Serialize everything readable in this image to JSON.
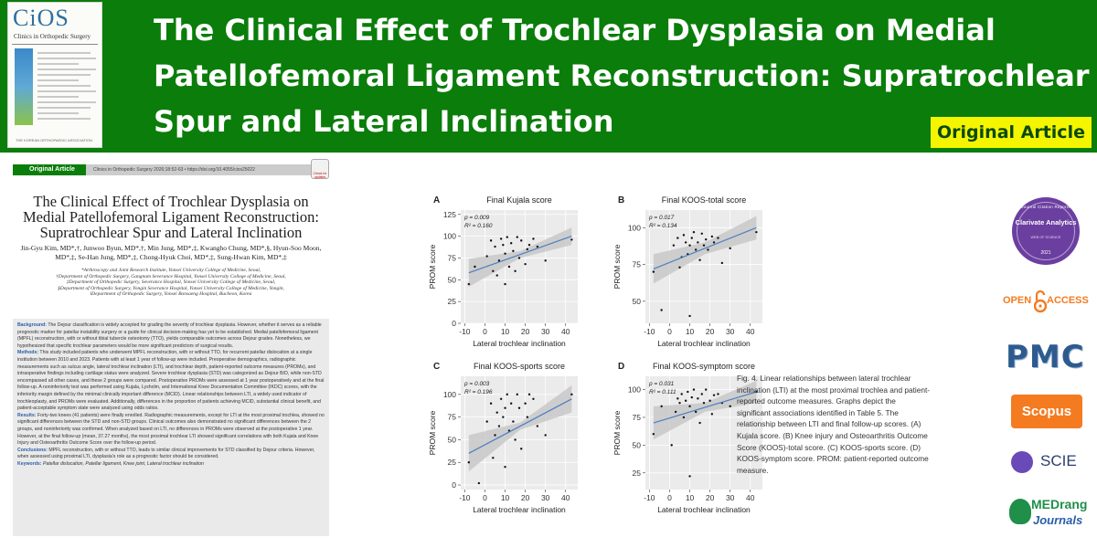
{
  "header": {
    "cover": {
      "logo": "CiOS",
      "journal_name": "Clinics in Orthopedic Surgery",
      "publisher": "THE KOREAN ORTHOPAEDIC ASSOCIATION"
    },
    "title": "The Clinical Effect of Trochlear Dysplasia on Medial Patellofemoral Ligament Reconstruction: Supratrochlear Spur and Lateral Inclination",
    "badge": "Original Article"
  },
  "paper": {
    "section_label": "Original Article",
    "citation": "Clinics in Orthopedic Surgery 2026;18:52-63  •  https://doi.org/10.4055/cios25022",
    "check_updates": "Check for updates",
    "title": "The Clinical Effect of Trochlear Dysplasia on Medial Patellofemoral Ligament Reconstruction: Supratrochlear Spur and Lateral Inclination",
    "authors": "Jin-Gyu Kim, MD*,†, Junwoo Byun, MD*,†, Min Jung, MD*,‡, Kwangho Chung, MD*,§, Hyun-Soo Moon, MD*,‡, Se-Han Jung, MD*,‡, Chong-Hyuk Choi, MD*,‡, Sung-Hwan Kim, MD*,‡",
    "affiliations": [
      "*Arthroscopy and Joint Research Institute, Yonsei University College of Medicine, Seoul,",
      "†Department of Orthopedic Surgery, Gangnam Severance Hospital, Yonsei University College of Medicine, Seoul,",
      "‡Department of Orthopedic Surgery, Severance Hospital, Yonsei University College of Medicine, Seoul,",
      "§Department of Orthopedic Surgery, Yongin Severance Hospital, Yonsei University College of Medicine, Yongin,",
      "‖Department of Orthopedic Surgery, Yonsei Bonsaeng Hospital, Bucheon, Korea"
    ],
    "abstract": {
      "background_label": "Background:",
      "background": "The Dejour classification is widely accepted for grading the severity of trochlear dysplasia. However, whether it serves as a reliable prognostic marker for patellar instability surgery or a guide for clinical decision-making has yet to be established. Medial patellofemoral ligament (MPFL) reconstruction, with or without tibial tubercle osteotomy (TTO), yields comparable outcomes across Dejour grades. Nonetheless, we hypothesized that specific trochlear parameters would be more significant predictors of surgical results.",
      "methods_label": "Methods:",
      "methods": "This study included patients who underwent MPFL reconstruction, with or without TTO, for recurrent patellar dislocation at a single institution between 2010 and 2023. Patients with at least 1 year of follow-up were included. Preoperative demographics, radiographic measurements such as sulcus angle, lateral trochlear inclination (LTI), and trochlear depth, patient-reported outcome measures (PROMs), and intraoperative findings including cartilage status were analyzed. Severe trochlear dysplasia (STD) was categorized as Dejour B/D, while non-STD encompassed all other cases, and these 2 groups were compared. Postoperative PROMs were assessed at 1 year postoperatively and at the final follow-up. A noninferiority test was performed using Kujala, Lysholm, and International Knee Documentation Committee (IKDC) scores, with the inferiority margin defined by the minimal clinically important difference (MCID). Linear relationships between LTI, a widely used indicator of trochleoplasty, and PROMs were evaluated. Additionally, differences in the proportion of patients achieving MCID, substantial clinical benefit, and patient-acceptable symptom state were analyzed using odds ratios.",
      "results_label": "Results:",
      "results": "Forty-two knees (41 patients) were finally enrolled. Radiographic measurements, except for LTI at the most proximal trochlea, showed no significant differences between the STD and non-STD groups. Clinical outcomes also demonstrated no significant differences between the 2 groups, and noninferiority was confirmed. When analyzed based on LTI, no differences in PROMs were observed at the postoperative 1 year. However, at the final follow-up (mean, 37.27 months), the most proximal trochlear LTI showed significant correlations with both Kujala and Knee Injury and Osteoarthritis Outcome Score over the follow-up period.",
      "conclusions_label": "Conclusions:",
      "conclusions": "MPFL reconstruction, with or without TTO, leads to similar clinical improvements for STD classified by Dejour criteria. However, when assessed using proximal LTI, dysplasia's role as a prognostic factor should be considered.",
      "keywords_label": "Keywords:",
      "keywords": "Patellar dislocation, Patellar ligament, Knee joint, Lateral trochlear inclination"
    }
  },
  "figure": {
    "caption": "Fig. 4. Linear relationships between lateral trochlear inclination (LTI) at the most proximal trochlea and patient-reported outcome measures. Graphs depict the significant associations identified in Table 5. The relationship between LTI and final follow-up scores. (A) Kujala score. (B) Knee injury and Osteoarthritis Outcome Score (KOOS)-total score. (C) KOOS-sports score. (D) KOOS-symptom score. PROM: patient-reported outcome measure."
  },
  "badges": {
    "jcr_top": "Journal Citation Reports",
    "jcr_brand": "Clarivate Analytics",
    "jcr_sub": "WEB OF SCIENCE",
    "jcr_year": "2021",
    "open_access_left": "OPEN",
    "open_access_right": "ACCESS",
    "pmc": "PMC",
    "scopus": "Scopus",
    "scie": "SCIE",
    "medrang_1": "MEDrang",
    "medrang_2": "Journals"
  },
  "chart_data": [
    {
      "type": "scatter",
      "panel": "A",
      "title": "Final Kujala score",
      "annotation": [
        "p = 0.009",
        "R² = 0.160"
      ],
      "xlabel": "Lateral trochlear inclination",
      "ylabel": "PROM score",
      "xlim": [
        -12,
        46
      ],
      "ylim": [
        0,
        130
      ],
      "xticks": [
        -10,
        0,
        10,
        20,
        30,
        40
      ],
      "yticks": [
        0,
        25,
        50,
        75,
        100,
        125
      ],
      "fit": {
        "x": [
          -8,
          43
        ],
        "y": [
          58,
          100
        ]
      },
      "band": {
        "lower": [
          42,
          90
        ],
        "upper": [
          74,
          110
        ]
      },
      "points": [
        [
          -8,
          45
        ],
        [
          -5,
          65
        ],
        [
          1,
          77
        ],
        [
          3,
          95
        ],
        [
          4,
          60
        ],
        [
          5,
          88
        ],
        [
          6,
          55
        ],
        [
          7,
          72
        ],
        [
          8,
          97
        ],
        [
          9,
          90
        ],
        [
          10,
          80
        ],
        [
          10,
          45
        ],
        [
          11,
          99
        ],
        [
          12,
          65
        ],
        [
          13,
          92
        ],
        [
          14,
          83
        ],
        [
          15,
          60
        ],
        [
          16,
          99
        ],
        [
          17,
          75
        ],
        [
          18,
          95
        ],
        [
          20,
          68
        ],
        [
          21,
          85
        ],
        [
          22,
          90
        ],
        [
          24,
          97
        ],
        [
          26,
          88
        ],
        [
          30,
          72
        ],
        [
          43,
          96
        ]
      ]
    },
    {
      "type": "scatter",
      "panel": "B",
      "title": "Final KOOS-total score",
      "annotation": [
        "p = 0.017",
        "R² = 0.134"
      ],
      "xlabel": "Lateral trochlear inclination",
      "ylabel": "PROM score",
      "xlim": [
        -12,
        46
      ],
      "ylim": [
        35,
        112
      ],
      "xticks": [
        -10,
        0,
        10,
        20,
        30,
        40
      ],
      "yticks": [
        50,
        75,
        100
      ],
      "fit": {
        "x": [
          -8,
          43
        ],
        "y": [
          72,
          100
        ]
      },
      "band": {
        "lower": [
          62,
          92
        ],
        "upper": [
          82,
          108
        ]
      },
      "points": [
        [
          -8,
          70
        ],
        [
          -4,
          44
        ],
        [
          2,
          88
        ],
        [
          4,
          93
        ],
        [
          5,
          73
        ],
        [
          6,
          80
        ],
        [
          7,
          95
        ],
        [
          8,
          90
        ],
        [
          9,
          82
        ],
        [
          10,
          88
        ],
        [
          10,
          40
        ],
        [
          11,
          93
        ],
        [
          12,
          97
        ],
        [
          13,
          85
        ],
        [
          14,
          90
        ],
        [
          15,
          78
        ],
        [
          16,
          96
        ],
        [
          17,
          88
        ],
        [
          18,
          92
        ],
        [
          19,
          85
        ],
        [
          21,
          94
        ],
        [
          22,
          90
        ],
        [
          24,
          93
        ],
        [
          26,
          76
        ],
        [
          30,
          86
        ],
        [
          43,
          97
        ]
      ]
    },
    {
      "type": "scatter",
      "panel": "C",
      "title": "Final KOOS-sports score",
      "annotation": [
        "p = 0.003",
        "R² = 0.196"
      ],
      "xlabel": "Lateral trochlear inclination",
      "ylabel": "PROM score",
      "xlim": [
        -12,
        46
      ],
      "ylim": [
        -5,
        120
      ],
      "xticks": [
        -10,
        0,
        10,
        20,
        30,
        40
      ],
      "yticks": [
        0,
        25,
        50,
        75,
        100
      ],
      "fit": {
        "x": [
          -8,
          43
        ],
        "y": [
          35,
          95
        ]
      },
      "band": {
        "lower": [
          15,
          80
        ],
        "upper": [
          55,
          110
        ]
      },
      "points": [
        [
          -8,
          25
        ],
        [
          -3,
          2
        ],
        [
          1,
          70
        ],
        [
          3,
          90
        ],
        [
          4,
          30
        ],
        [
          5,
          55
        ],
        [
          6,
          80
        ],
        [
          7,
          65
        ],
        [
          8,
          95
        ],
        [
          9,
          75
        ],
        [
          10,
          20
        ],
        [
          10,
          85
        ],
        [
          11,
          100
        ],
        [
          12,
          60
        ],
        [
          13,
          90
        ],
        [
          14,
          70
        ],
        [
          15,
          50
        ],
        [
          16,
          100
        ],
        [
          17,
          85
        ],
        [
          18,
          40
        ],
        [
          20,
          90
        ],
        [
          21,
          75
        ],
        [
          22,
          100
        ],
        [
          24,
          95
        ],
        [
          26,
          65
        ],
        [
          30,
          55
        ],
        [
          43,
          100
        ]
      ]
    },
    {
      "type": "scatter",
      "panel": "D",
      "title": "Final KOOS-symptom score",
      "annotation": [
        "p = 0.031",
        "R² = 0.111"
      ],
      "xlabel": "Lateral trochlear inclination",
      "ylabel": "PROM score",
      "xlim": [
        -12,
        46
      ],
      "ylim": [
        10,
        112
      ],
      "xticks": [
        -10,
        0,
        10,
        20,
        30,
        40
      ],
      "yticks": [
        25,
        50,
        75,
        100
      ],
      "fit": {
        "x": [
          -8,
          43
        ],
        "y": [
          70,
          98
        ]
      },
      "band": {
        "lower": [
          55,
          88
        ],
        "upper": [
          85,
          108
        ]
      },
      "points": [
        [
          -8,
          60
        ],
        [
          -4,
          85
        ],
        [
          1,
          50
        ],
        [
          3,
          80
        ],
        [
          4,
          92
        ],
        [
          5,
          88
        ],
        [
          6,
          96
        ],
        [
          7,
          75
        ],
        [
          8,
          90
        ],
        [
          9,
          98
        ],
        [
          10,
          85
        ],
        [
          10,
          22
        ],
        [
          11,
          93
        ],
        [
          12,
          100
        ],
        [
          13,
          80
        ],
        [
          14,
          92
        ],
        [
          15,
          70
        ],
        [
          16,
          96
        ],
        [
          17,
          88
        ],
        [
          18,
          100
        ],
        [
          20,
          90
        ],
        [
          21,
          78
        ],
        [
          22,
          95
        ],
        [
          24,
          96
        ],
        [
          26,
          88
        ],
        [
          30,
          85
        ],
        [
          43,
          98
        ]
      ]
    }
  ]
}
